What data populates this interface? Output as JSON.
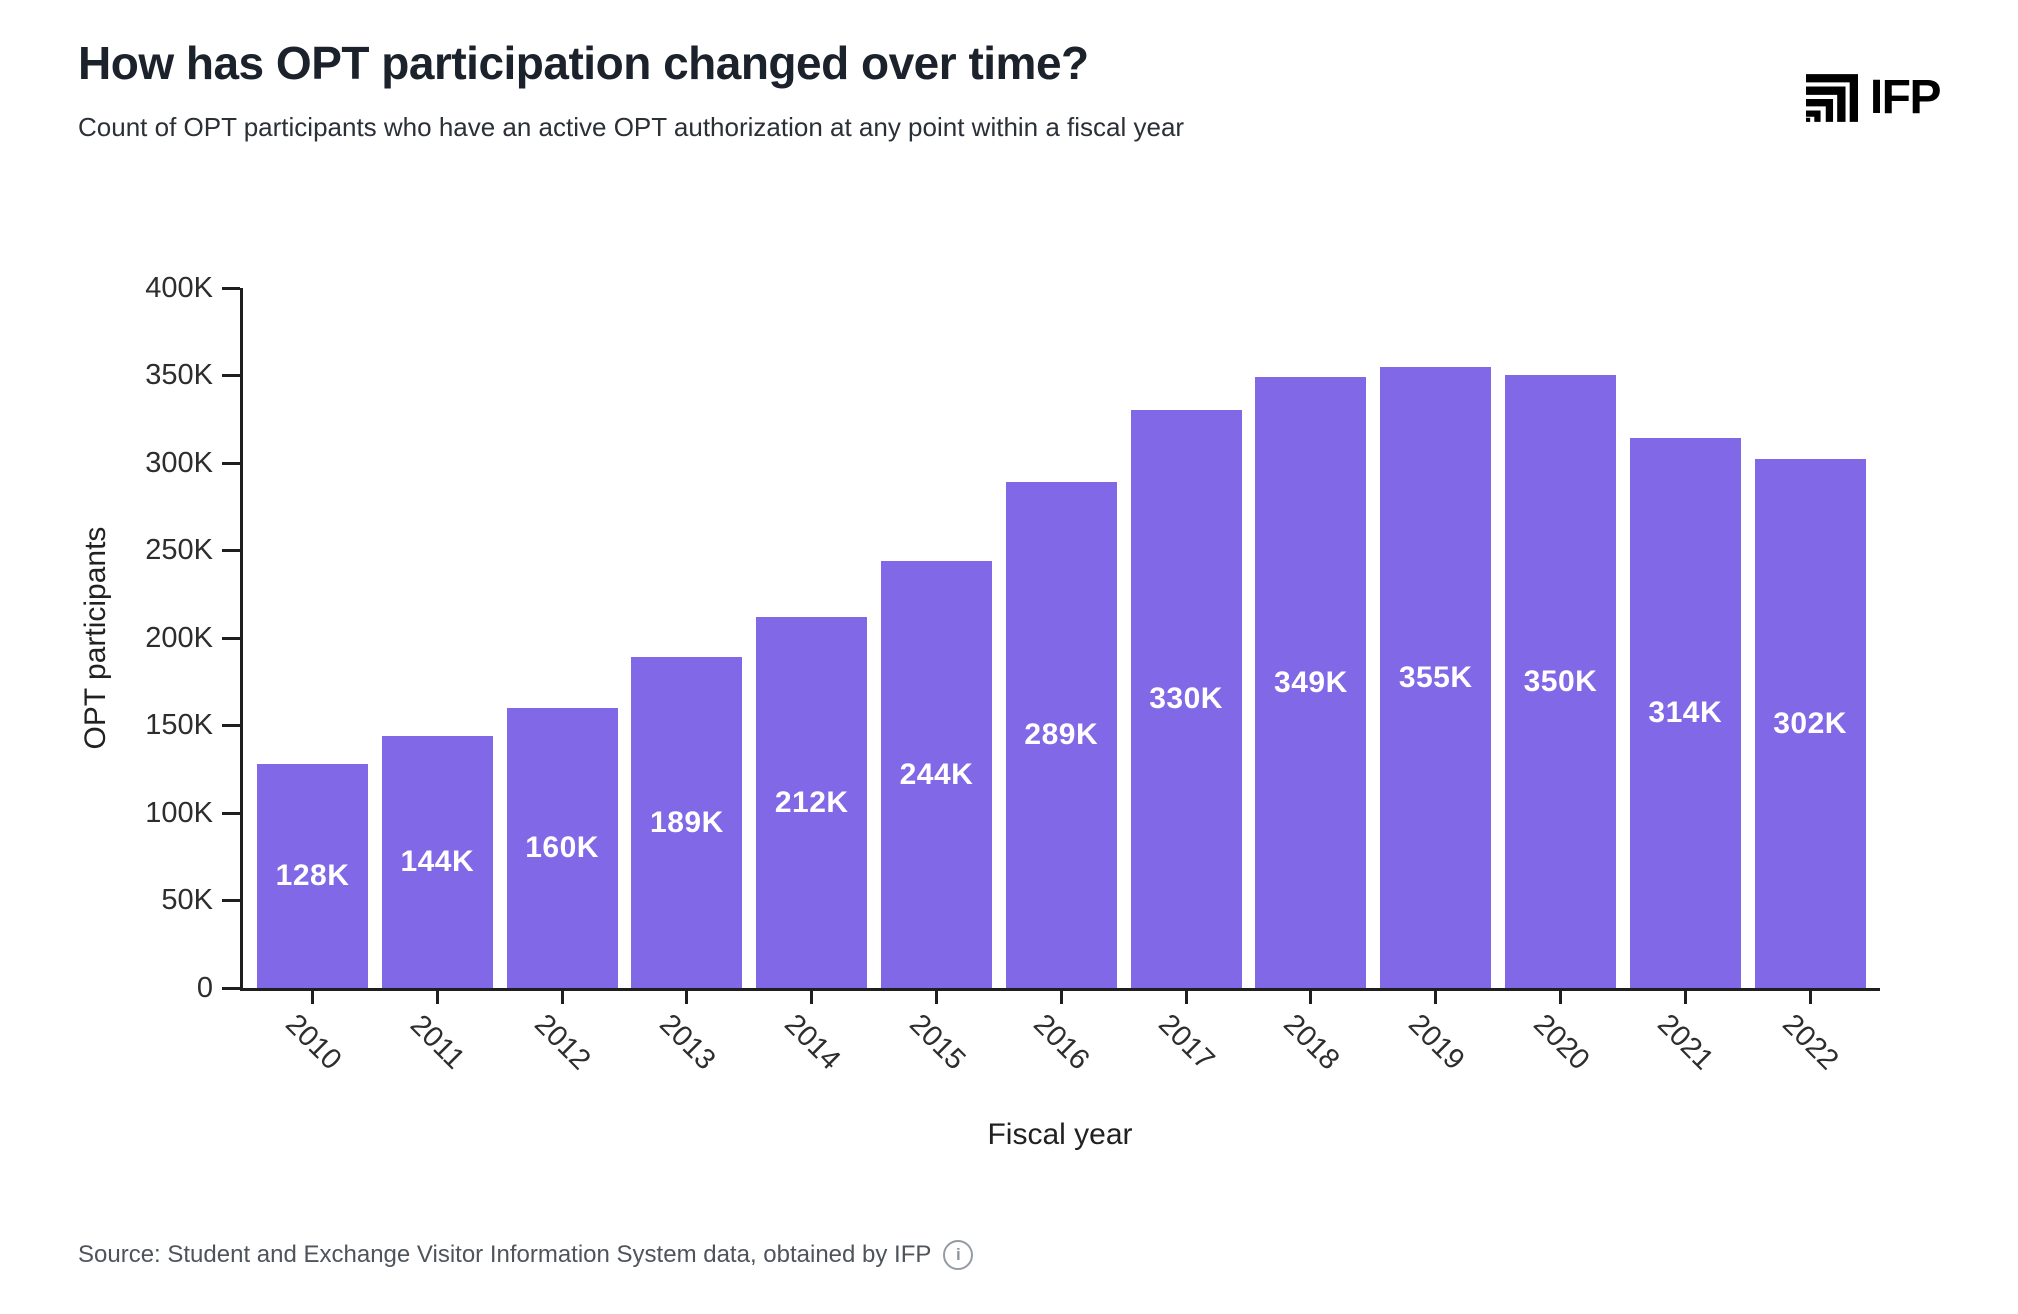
{
  "header": {
    "title": "How has OPT participation changed over time?",
    "subtitle": "Count of OPT participants who have an active OPT authorization at any point within a fiscal year",
    "logo_text": "IFP"
  },
  "chart_data": {
    "type": "bar",
    "title": "How has OPT participation changed over time?",
    "subtitle": "Count of OPT participants who have an active OPT authorization at any point within a fiscal year",
    "categories": [
      "2010",
      "2011",
      "2012",
      "2013",
      "2014",
      "2015",
      "2016",
      "2017",
      "2018",
      "2019",
      "2020",
      "2021",
      "2022"
    ],
    "values": [
      128000,
      144000,
      160000,
      189000,
      212000,
      244000,
      289000,
      330000,
      349000,
      355000,
      350000,
      314000,
      302000
    ],
    "value_labels": [
      "128K",
      "144K",
      "160K",
      "189K",
      "212K",
      "244K",
      "289K",
      "330K",
      "349K",
      "355K",
      "350K",
      "314K",
      "302K"
    ],
    "xlabel": "Fiscal year",
    "ylabel": "OPT participants",
    "ylim": [
      0,
      400000
    ],
    "ytick_step": 50000,
    "yticks": [
      "0",
      "50K",
      "100K",
      "150K",
      "200K",
      "250K",
      "300K",
      "350K",
      "400K"
    ],
    "grid": false,
    "legend_position": "none",
    "bar_color": "#8168e7",
    "bar_label_color": "#ffffff",
    "axis_color": "#1f1f1f"
  },
  "footer": {
    "source": "Source: Student and Exchange Visitor Information System data, obtained by IFP",
    "info_icon": "info-icon",
    "info_glyph": "i"
  }
}
